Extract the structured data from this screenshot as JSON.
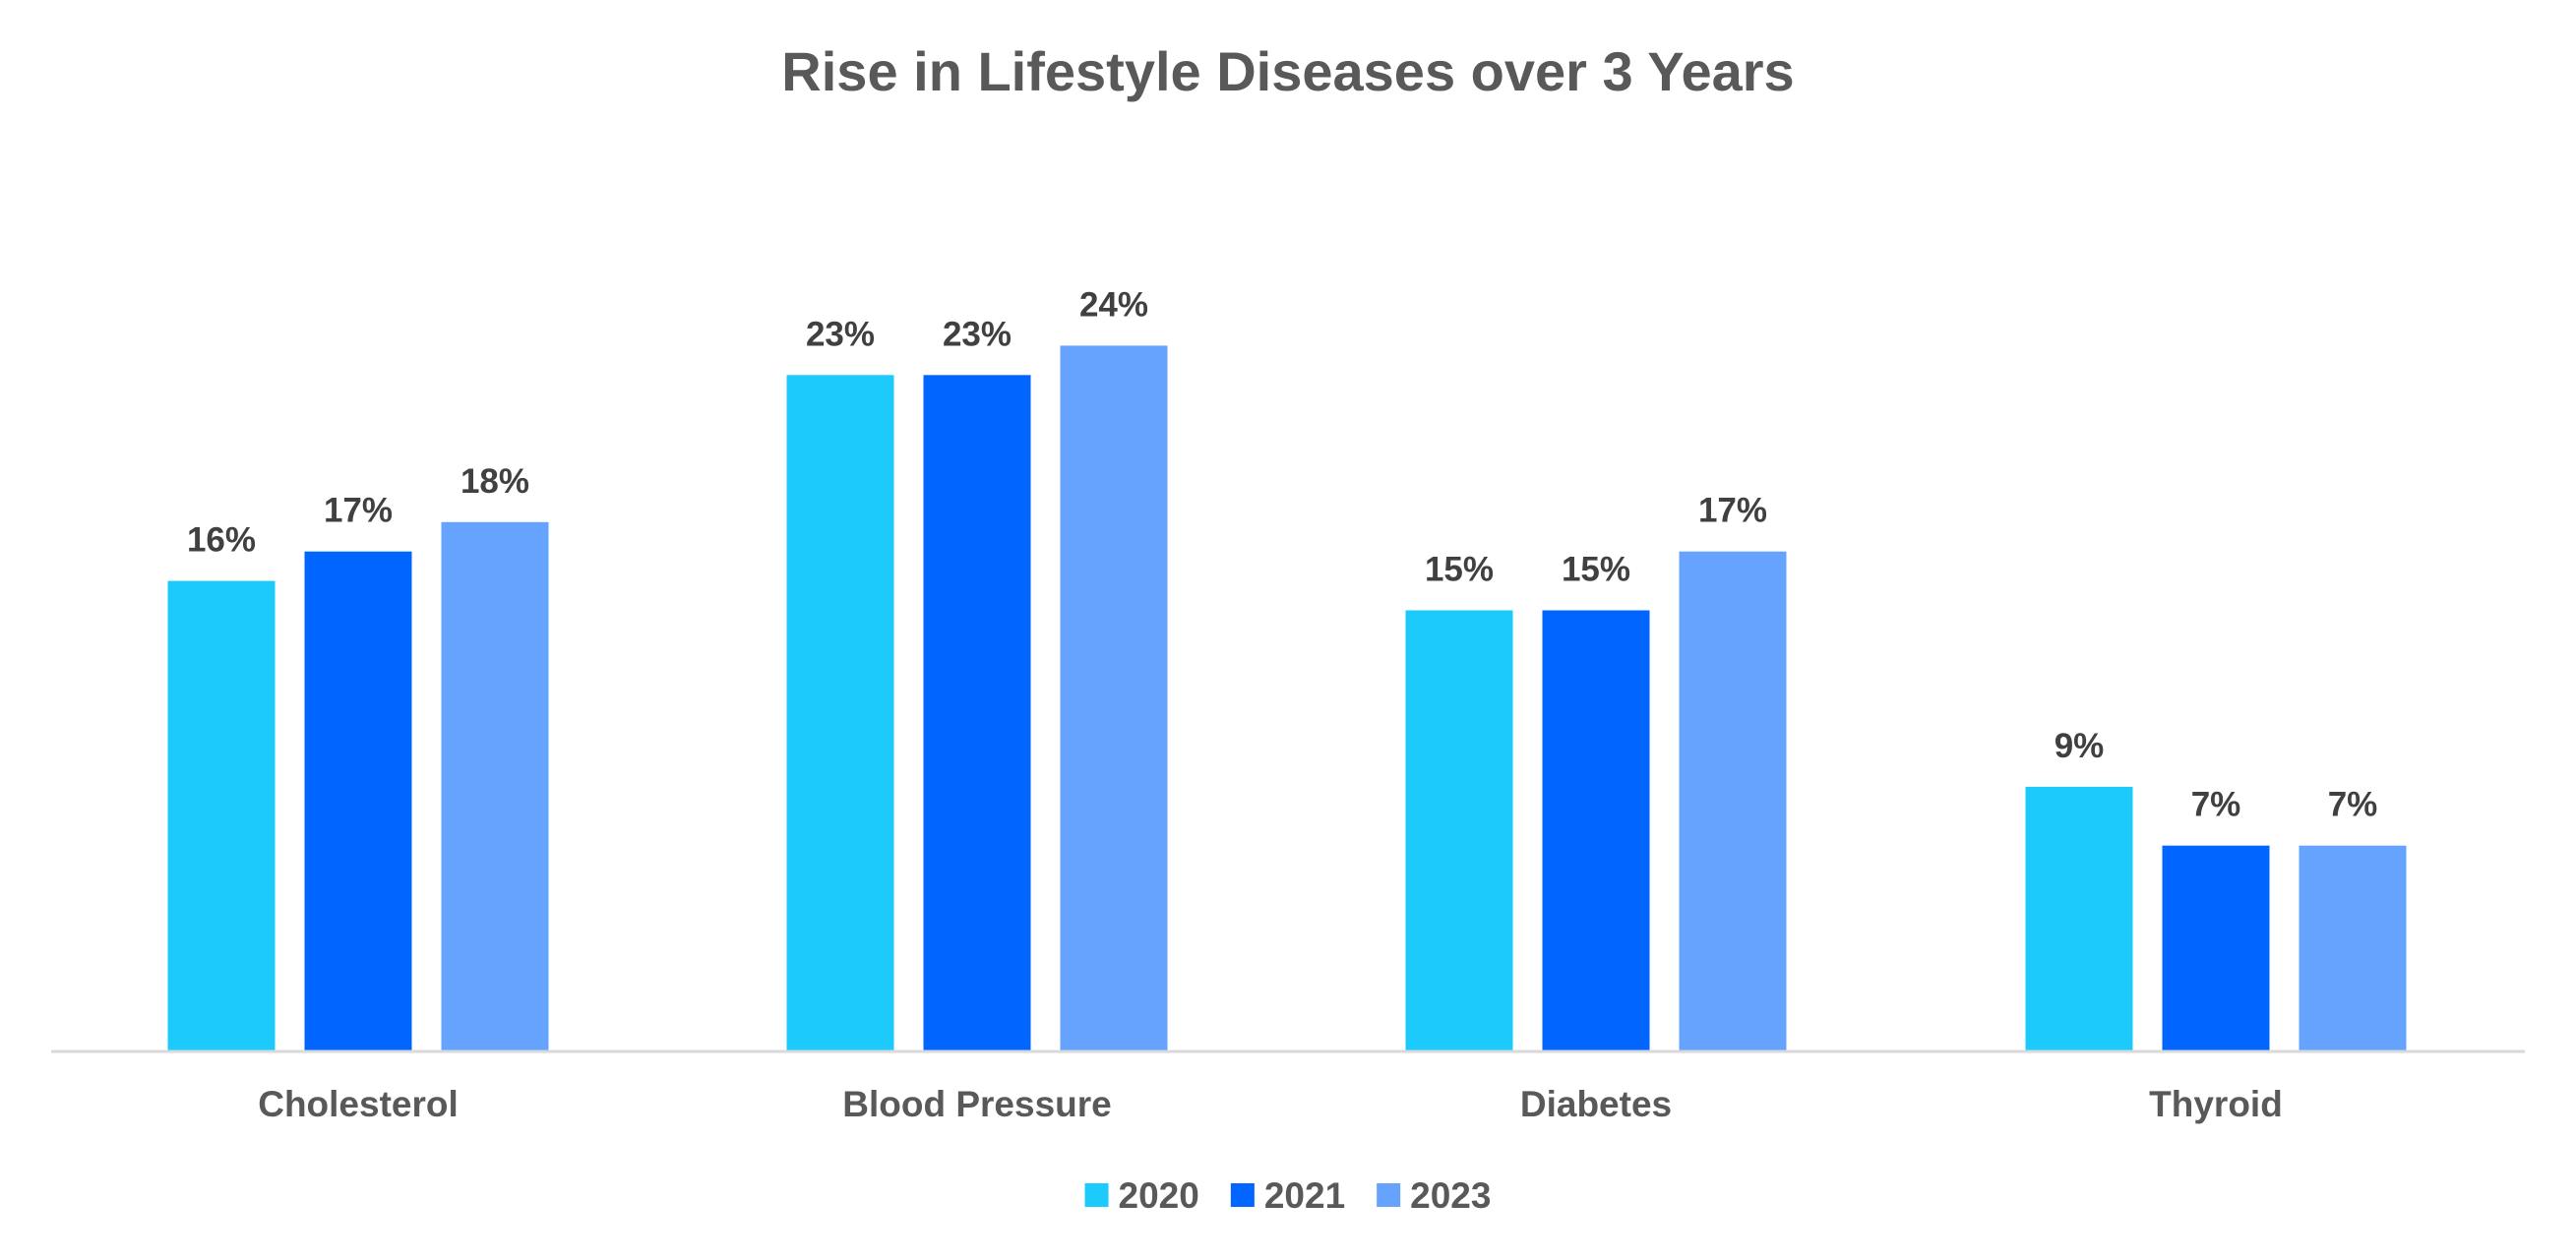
{
  "chart_data": {
    "type": "bar",
    "title": "Rise in Lifestyle Diseases over 3 Years",
    "xlabel": "",
    "ylabel": "",
    "categories": [
      "Cholesterol",
      "Blood Pressure",
      "Diabetes",
      "Thyroid"
    ],
    "series": [
      {
        "name": "2020",
        "color": "#1CCBFC",
        "values": [
          16,
          23,
          15,
          9
        ],
        "labels": [
          "16%",
          "23%",
          "15%",
          "9%"
        ]
      },
      {
        "name": "2021",
        "color": "#0066FF",
        "values": [
          17,
          23,
          15,
          7
        ],
        "labels": [
          "17%",
          "23%",
          "15%",
          "7%"
        ]
      },
      {
        "name": "2023",
        "color": "#66A3FF",
        "values": [
          18,
          24,
          17,
          7
        ],
        "labels": [
          "18%",
          "24%",
          "17%",
          "7%"
        ]
      }
    ],
    "ylim": [
      0,
      24
    ],
    "grid": false,
    "legend_position": "bottom",
    "axis_color": "#D9D9D9"
  }
}
